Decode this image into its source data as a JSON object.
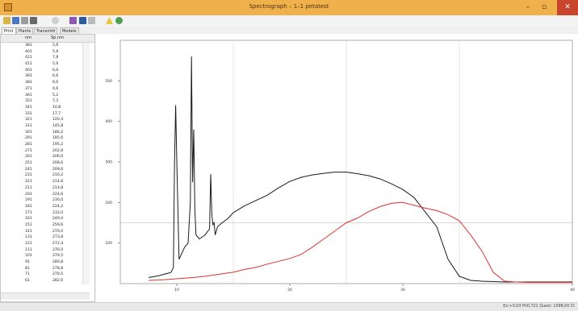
{
  "window": {
    "title": "Spectrograph – 1–1 petatest"
  },
  "toolbar": {
    "icons": [
      "open-icon",
      "save-icon",
      "copy-icon",
      "paste-icon",
      "refresh-icon",
      "table-icon",
      "grid-icon",
      "pen-icon",
      "warning-icon",
      "eye-icon"
    ]
  },
  "tabs": [
    {
      "label": "Print"
    },
    {
      "label": "Plants"
    },
    {
      "label": "Transmitt"
    },
    {
      "label": "Models"
    }
  ],
  "table": {
    "headers": [
      "nm",
      "Sp.nm"
    ],
    "rows": [
      [
        "381",
        "5,6"
      ],
      [
        "401",
        "5,8"
      ],
      [
        "421",
        "7,8"
      ],
      [
        "411",
        "5,6"
      ],
      [
        "401",
        "6,6"
      ],
      [
        "391",
        "6,6"
      ],
      [
        "381",
        "6,6"
      ],
      [
        "371",
        "4,6"
      ],
      [
        "361",
        "5,2"
      ],
      [
        "351",
        "7,2"
      ],
      [
        "341",
        "10,8"
      ],
      [
        "331",
        "17,7"
      ],
      [
        "321",
        "120,4"
      ],
      [
        "311",
        "145,8"
      ],
      [
        "301",
        "186,2"
      ],
      [
        "291",
        "185,6"
      ],
      [
        "281",
        "195,2"
      ],
      [
        "271",
        "202,8"
      ],
      [
        "261",
        "206,0"
      ],
      [
        "251",
        "208,6"
      ],
      [
        "241",
        "209,6"
      ],
      [
        "231",
        "210,2"
      ],
      [
        "221",
        "214,6"
      ],
      [
        "211",
        "214,8"
      ],
      [
        "201",
        "224,6"
      ],
      [
        "191",
        "230,0"
      ],
      [
        "181",
        "224,2"
      ],
      [
        "171",
        "232,0"
      ],
      [
        "161",
        "249,0"
      ],
      [
        "151",
        "259,6"
      ],
      [
        "141",
        "270,0"
      ],
      [
        "131",
        "273,8"
      ],
      [
        "121",
        "272,4"
      ],
      [
        "111",
        "276,0"
      ],
      [
        "101",
        "279,5"
      ],
      [
        "91",
        "280,8"
      ],
      [
        "81",
        "278,8"
      ],
      [
        "71",
        "279,5"
      ],
      [
        "61",
        "282,6"
      ]
    ]
  },
  "chart_data": {
    "type": "line",
    "xlim": [
      300,
      700
    ],
    "ylim": [
      0,
      600
    ],
    "xticks": [
      400,
      500,
      600
    ],
    "ytick_labels": [
      {
        "v": 100,
        "label": "100"
      },
      {
        "v": 200,
        "label": "200"
      },
      {
        "v": 300,
        "label": "300"
      },
      {
        "v": 400,
        "label": "400"
      },
      {
        "v": 500,
        "label": "500"
      }
    ],
    "x_tick_labels": [
      {
        "v": 350,
        "label": "10"
      },
      {
        "v": 450,
        "label": "20"
      },
      {
        "v": 550,
        "label": "30"
      },
      {
        "v": 700,
        "label": "40"
      }
    ],
    "grid": true,
    "hline": 150,
    "series": [
      {
        "color": "#1a1a1a",
        "x": [
          325,
          330,
          335,
          340,
          343,
          345,
          347,
          348,
          349,
          350,
          352,
          357,
          360,
          362,
          363,
          364,
          365,
          366,
          367,
          370,
          375,
          379,
          380,
          381,
          382,
          383,
          384,
          386,
          390,
          395,
          400,
          410,
          420,
          430,
          440,
          450,
          460,
          470,
          480,
          490,
          500,
          510,
          520,
          530,
          540,
          550,
          560,
          570,
          580,
          590,
          600,
          610,
          620,
          630,
          640,
          650,
          660,
          670,
          680,
          690,
          700
        ],
        "y": [
          15,
          17,
          20,
          24,
          26,
          28,
          40,
          300,
          440,
          300,
          60,
          90,
          100,
          200,
          560,
          250,
          380,
          180,
          120,
          110,
          120,
          135,
          270,
          170,
          145,
          150,
          120,
          140,
          150,
          160,
          175,
          192,
          205,
          218,
          236,
          252,
          262,
          268,
          272,
          275,
          275,
          271,
          266,
          258,
          246,
          232,
          212,
          176,
          140,
          60,
          18,
          8,
          6,
          5,
          4,
          4,
          4,
          4,
          4,
          4,
          4
        ]
      },
      {
        "color": "#e0322c",
        "x": [
          325,
          335,
          345,
          355,
          365,
          375,
          385,
          395,
          400,
          410,
          420,
          430,
          440,
          450,
          460,
          470,
          480,
          490,
          495,
          500,
          510,
          520,
          530,
          540,
          550,
          560,
          570,
          580,
          590,
          600,
          610,
          620,
          630,
          640,
          650,
          660,
          670,
          680,
          690,
          700
        ],
        "y": [
          8,
          9,
          11,
          13,
          15,
          18,
          22,
          26,
          28,
          35,
          40,
          48,
          55,
          62,
          72,
          90,
          110,
          130,
          140,
          150,
          162,
          178,
          190,
          198,
          200,
          193,
          186,
          180,
          170,
          155,
          120,
          80,
          28,
          6,
          4,
          3,
          3,
          3,
          3,
          3
        ]
      }
    ]
  },
  "status": {
    "text": "Ex:+0,03 Ph0,721 Quest: 1098,00 Ct"
  }
}
